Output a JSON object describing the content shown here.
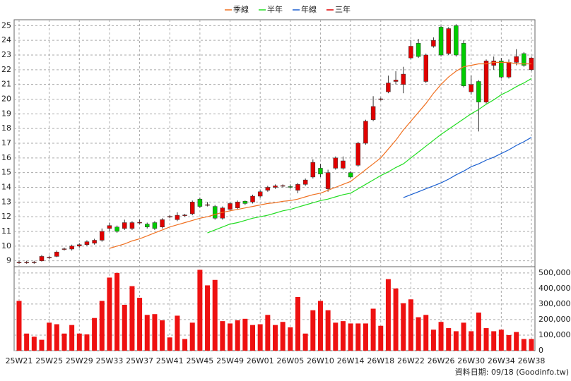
{
  "chart_data": {
    "type": "candlestick",
    "footer": "資料日期: 09/18 (Goodinfo.tw)",
    "up_color": "#e00000",
    "down_color": "#00cc00",
    "grid": true,
    "categories": [
      "25W21",
      null,
      null,
      null,
      "25W25",
      null,
      null,
      null,
      "25W29",
      null,
      null,
      null,
      "25W33",
      null,
      null,
      null,
      "25W37",
      null,
      null,
      null,
      "25W41",
      null,
      null,
      null,
      "25W45",
      null,
      null,
      null,
      "25W49",
      null,
      null,
      null,
      "26W01",
      null,
      null,
      null,
      "26W05",
      null,
      null,
      null,
      "26W10",
      null,
      null,
      null,
      "26W14",
      null,
      null,
      null,
      "26W18",
      null,
      null,
      null,
      "26W22",
      null,
      null,
      null,
      "26W26",
      null,
      null,
      null,
      "26W30",
      null,
      null,
      null,
      "26W34",
      null,
      null,
      null,
      "26W38"
    ],
    "open": [
      8.9,
      8.9,
      8.9,
      9.0,
      9.2,
      9.3,
      9.8,
      9.8,
      10.0,
      10.1,
      10.2,
      10.4,
      11.2,
      11.3,
      11.2,
      11.2,
      11.6,
      11.5,
      11.6,
      11.3,
      12.0,
      11.8,
      12.1,
      12.2,
      13.2,
      12.8,
      12.7,
      11.9,
      12.5,
      12.6,
      13.05,
      13.0,
      13.4,
      13.8,
      14.0,
      14.1,
      14.05,
      13.8,
      14.2,
      14.7,
      15.3,
      13.9,
      15.3,
      15.3,
      15.0,
      15.5,
      17.0,
      18.6,
      20.0,
      20.5,
      21.2,
      21.0,
      22.8,
      23.8,
      21.2,
      23.6,
      24.9,
      23.1,
      25.0,
      23.8,
      20.5,
      21.2,
      19.8,
      22.3,
      22.6,
      21.5,
      22.5,
      23.1,
      22.0
    ],
    "close": [
      8.9,
      8.9,
      8.92,
      9.3,
      9.25,
      9.6,
      9.82,
      10.0,
      10.1,
      10.3,
      10.4,
      11.0,
      11.4,
      11.0,
      11.6,
      11.6,
      11.62,
      11.3,
      11.2,
      11.8,
      12.02,
      12.1,
      12.12,
      13.0,
      12.7,
      12.82,
      11.9,
      12.6,
      12.9,
      13.0,
      12.9,
      13.4,
      13.7,
      14.0,
      14.1,
      14.12,
      14.0,
      14.2,
      14.5,
      15.7,
      14.9,
      15.0,
      16.0,
      15.8,
      14.7,
      17.0,
      18.5,
      19.5,
      20.02,
      21.1,
      21.3,
      21.7,
      23.6,
      22.9,
      23.0,
      24.0,
      23.0,
      24.8,
      23.0,
      20.9,
      21.0,
      19.8,
      22.6,
      22.6,
      21.5,
      22.5,
      22.9,
      22.3,
      22.8
    ],
    "high": [
      9.0,
      9.0,
      9.0,
      9.4,
      9.35,
      9.7,
      9.9,
      10.1,
      10.2,
      10.4,
      10.5,
      11.2,
      11.6,
      11.4,
      11.8,
      11.7,
      11.8,
      11.6,
      11.7,
      11.9,
      12.1,
      12.3,
      12.2,
      13.1,
      13.3,
      13.0,
      12.8,
      12.7,
      13.0,
      13.1,
      13.1,
      13.5,
      13.8,
      14.1,
      14.2,
      14.2,
      14.2,
      14.3,
      14.6,
      15.9,
      15.6,
      15.2,
      16.1,
      16.1,
      15.1,
      17.1,
      18.6,
      20.2,
      20.1,
      21.6,
      21.9,
      22.2,
      24.0,
      24.1,
      23.1,
      24.2,
      25.0,
      24.9,
      25.1,
      24.0,
      21.6,
      21.3,
      22.7,
      22.9,
      22.8,
      22.7,
      23.4,
      23.2,
      22.9
    ],
    "low": [
      8.8,
      8.8,
      8.8,
      8.95,
      9.1,
      9.25,
      9.7,
      9.7,
      9.9,
      10.0,
      10.1,
      10.3,
      11.0,
      10.9,
      11.1,
      11.1,
      11.5,
      11.2,
      11.1,
      11.2,
      11.9,
      11.7,
      12.0,
      12.1,
      12.6,
      12.7,
      11.8,
      11.8,
      12.4,
      12.5,
      12.8,
      12.9,
      13.3,
      13.7,
      13.9,
      14.0,
      13.9,
      13.6,
      14.1,
      14.6,
      14.7,
      13.7,
      15.2,
      15.2,
      14.6,
      15.4,
      16.9,
      18.5,
      19.9,
      20.4,
      21.0,
      20.4,
      22.7,
      22.8,
      21.1,
      23.5,
      22.9,
      23.0,
      22.9,
      20.8,
      20.3,
      17.8,
      19.7,
      22.0,
      21.4,
      21.4,
      22.3,
      22.2,
      21.9
    ],
    "ylim": [
      8.6,
      25.4
    ],
    "yticks": [
      9,
      10,
      11,
      12,
      13,
      14,
      15,
      16,
      17,
      18,
      19,
      20,
      21,
      22,
      23,
      24,
      25
    ],
    "series": [
      {
        "name": "季線",
        "color": "#f07020",
        "values": [
          null,
          null,
          null,
          null,
          null,
          null,
          null,
          null,
          null,
          null,
          null,
          null,
          9.85,
          10.0,
          10.15,
          10.35,
          10.5,
          10.7,
          10.9,
          11.1,
          11.3,
          11.45,
          11.6,
          11.75,
          11.9,
          12.0,
          12.15,
          12.3,
          12.4,
          12.5,
          12.6,
          12.7,
          12.8,
          12.9,
          12.95,
          13.05,
          13.1,
          13.2,
          13.35,
          13.5,
          13.6,
          13.8,
          14.0,
          14.2,
          14.4,
          14.8,
          15.2,
          15.6,
          16.0,
          16.6,
          17.2,
          17.9,
          18.5,
          19.1,
          19.7,
          20.4,
          21.0,
          21.5,
          21.9,
          22.2,
          22.3,
          22.4,
          22.4,
          22.5,
          22.5,
          22.5,
          22.4,
          22.4,
          22.4
        ]
      },
      {
        "name": "半年",
        "color": "#22dd22",
        "values": [
          null,
          null,
          null,
          null,
          null,
          null,
          null,
          null,
          null,
          null,
          null,
          null,
          null,
          null,
          null,
          null,
          null,
          null,
          null,
          null,
          null,
          null,
          null,
          null,
          null,
          10.9,
          11.1,
          11.3,
          11.5,
          11.6,
          11.75,
          11.9,
          12.0,
          12.1,
          12.25,
          12.4,
          12.5,
          12.65,
          12.8,
          12.95,
          13.1,
          13.2,
          13.35,
          13.5,
          13.6,
          13.9,
          14.2,
          14.5,
          14.8,
          15.05,
          15.35,
          15.6,
          16.0,
          16.4,
          16.8,
          17.2,
          17.6,
          17.95,
          18.3,
          18.65,
          19.0,
          19.3,
          19.65,
          19.95,
          20.3,
          20.55,
          20.85,
          21.1,
          21.4
        ]
      },
      {
        "name": "年線",
        "color": "#1a5fd0",
        "values": [
          null,
          null,
          null,
          null,
          null,
          null,
          null,
          null,
          null,
          null,
          null,
          null,
          null,
          null,
          null,
          null,
          null,
          null,
          null,
          null,
          null,
          null,
          null,
          null,
          null,
          null,
          null,
          null,
          null,
          null,
          null,
          null,
          null,
          null,
          null,
          null,
          null,
          null,
          null,
          null,
          null,
          null,
          null,
          null,
          null,
          null,
          null,
          null,
          null,
          null,
          null,
          13.3,
          13.5,
          13.7,
          13.9,
          14.1,
          14.3,
          14.55,
          14.85,
          15.1,
          15.4,
          15.6,
          15.85,
          16.05,
          16.3,
          16.55,
          16.85,
          17.1,
          17.4
        ]
      },
      {
        "name": "三年",
        "color": "#e00000",
        "values": [
          null,
          null,
          null,
          null,
          null,
          null,
          null,
          null,
          null,
          null,
          null,
          null,
          null,
          null,
          null,
          null,
          null,
          null,
          null,
          null,
          null,
          null,
          null,
          null,
          null,
          null,
          null,
          null,
          null,
          null,
          null,
          null,
          null,
          null,
          null,
          null,
          null,
          null,
          null,
          null,
          null,
          null,
          null,
          null,
          null,
          null,
          null,
          null,
          null,
          null,
          null,
          null,
          null,
          null,
          null,
          null,
          null,
          null,
          null,
          null,
          null,
          null,
          null,
          null,
          null,
          null,
          null,
          null,
          null
        ]
      }
    ],
    "volume": {
      "color": "#ee1111",
      "values": [
        320000,
        110000,
        90000,
        70000,
        180000,
        170000,
        110000,
        165000,
        110000,
        105000,
        210000,
        320000,
        470000,
        500000,
        295000,
        415000,
        340000,
        230000,
        235000,
        195000,
        85000,
        225000,
        75000,
        180000,
        520000,
        420000,
        455000,
        190000,
        175000,
        195000,
        205000,
        165000,
        170000,
        230000,
        165000,
        185000,
        150000,
        345000,
        110000,
        260000,
        320000,
        260000,
        180000,
        190000,
        175000,
        175000,
        175000,
        270000,
        160000,
        460000,
        400000,
        305000,
        330000,
        215000,
        230000,
        135000,
        185000,
        145000,
        125000,
        180000,
        125000,
        245000,
        145000,
        125000,
        135000,
        100000,
        120000,
        75000,
        75000
      ],
      "ylim": [
        0,
        540000
      ],
      "yticks": [
        0,
        {
          "value": 100000,
          "label": "100,000"
        },
        {
          "value": 200000,
          "label": "200,000"
        },
        {
          "value": 300000,
          "label": "300,000"
        },
        {
          "value": 400000,
          "label": "400,000"
        },
        {
          "value": 500000,
          "label": "500,000"
        }
      ]
    }
  }
}
